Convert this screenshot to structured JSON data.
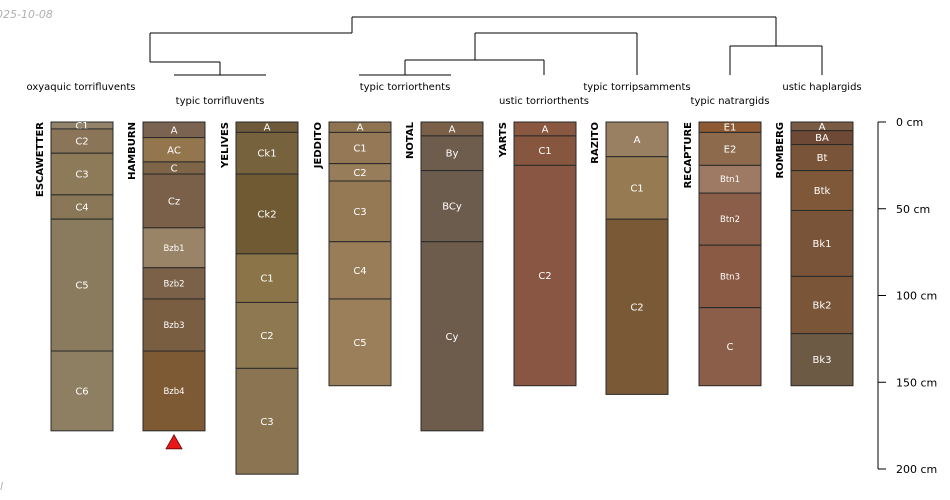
{
  "corner": {
    "date": "025-10-08",
    "mark": "l"
  },
  "colors": {
    "line": "#000000",
    "horizon_border": "#2a2a2a",
    "marker": "#e81818"
  },
  "depth_axis": {
    "unit": "cm",
    "ticks": [
      {
        "value": 0,
        "label": "0 cm"
      },
      {
        "value": 50,
        "label": "50 cm"
      },
      {
        "value": 100,
        "label": "100 cm"
      },
      {
        "value": 150,
        "label": "150 cm"
      },
      {
        "value": 200,
        "label": "200 cm"
      }
    ]
  },
  "groups": [
    {
      "label": "oxyaquic torrifluvents"
    },
    {
      "label": "typic torrifluvents"
    },
    {
      "label": "typic torriorthents"
    },
    {
      "label": "ustic torriorthents"
    },
    {
      "label": "typic torripsamments"
    },
    {
      "label": "typic natrargids"
    },
    {
      "label": "ustic haplargids"
    }
  ],
  "profiles": [
    {
      "name": "ESCAWETTER",
      "horizons": [
        {
          "name": "C1",
          "top": 0,
          "bottom": 4,
          "color": "#93836a"
        },
        {
          "name": "C2",
          "top": 4,
          "bottom": 18,
          "color": "#8a7558"
        },
        {
          "name": "C3",
          "top": 18,
          "bottom": 42,
          "color": "#8d7a58"
        },
        {
          "name": "C4",
          "top": 42,
          "bottom": 56,
          "color": "#8a7757"
        },
        {
          "name": "C5",
          "top": 56,
          "bottom": 132,
          "color": "#8b7b5e"
        },
        {
          "name": "C6",
          "top": 132,
          "bottom": 178,
          "color": "#8e7e62"
        }
      ]
    },
    {
      "name": "HAMBURN",
      "marker": true,
      "horizons": [
        {
          "name": "A",
          "top": 0,
          "bottom": 9,
          "color": "#7a6350"
        },
        {
          "name": "AC",
          "top": 9,
          "bottom": 23,
          "color": "#94764e"
        },
        {
          "name": "C",
          "top": 23,
          "bottom": 30,
          "color": "#7e6548"
        },
        {
          "name": "Cz",
          "top": 30,
          "bottom": 61,
          "color": "#7a6048"
        },
        {
          "name": "Bzb1",
          "top": 61,
          "bottom": 84,
          "color": "#9a8468"
        },
        {
          "name": "Bzb2",
          "top": 84,
          "bottom": 102,
          "color": "#7a6148"
        },
        {
          "name": "Bzb3",
          "top": 102,
          "bottom": 132,
          "color": "#7a5e42"
        },
        {
          "name": "Bzb4",
          "top": 132,
          "bottom": 178,
          "color": "#7e5a34"
        }
      ]
    },
    {
      "name": "YELIVES",
      "horizons": [
        {
          "name": "A",
          "top": 0,
          "bottom": 6,
          "color": "#6e5a3a"
        },
        {
          "name": "Ck1",
          "top": 6,
          "bottom": 30,
          "color": "#76633e"
        },
        {
          "name": "Ck2",
          "top": 30,
          "bottom": 76,
          "color": "#6f5a34"
        },
        {
          "name": "C1",
          "top": 76,
          "bottom": 104,
          "color": "#8b7548"
        },
        {
          "name": "C2",
          "top": 104,
          "bottom": 142,
          "color": "#8d7852"
        },
        {
          "name": "C3",
          "top": 142,
          "bottom": 203,
          "color": "#8a7451"
        }
      ]
    },
    {
      "name": "JEDDITO",
      "horizons": [
        {
          "name": "A",
          "top": 0,
          "bottom": 6,
          "color": "#8f7452"
        },
        {
          "name": "C1",
          "top": 6,
          "bottom": 24,
          "color": "#957956"
        },
        {
          "name": "C2",
          "top": 24,
          "bottom": 34,
          "color": "#987d5a"
        },
        {
          "name": "C3",
          "top": 34,
          "bottom": 69,
          "color": "#957955"
        },
        {
          "name": "C4",
          "top": 69,
          "bottom": 102,
          "color": "#987d58"
        },
        {
          "name": "C5",
          "top": 102,
          "bottom": 152,
          "color": "#9a7f5a"
        }
      ]
    },
    {
      "name": "NOTAL",
      "horizons": [
        {
          "name": "A",
          "top": 0,
          "bottom": 8,
          "color": "#7a6048"
        },
        {
          "name": "By",
          "top": 8,
          "bottom": 28,
          "color": "#6e5c4c"
        },
        {
          "name": "BCy",
          "top": 28,
          "bottom": 69,
          "color": "#6c5c4d"
        },
        {
          "name": "Cy",
          "top": 69,
          "bottom": 178,
          "color": "#6d5b4b"
        }
      ]
    },
    {
      "name": "YARTS",
      "horizons": [
        {
          "name": "A",
          "top": 0,
          "bottom": 8,
          "color": "#8a5840"
        },
        {
          "name": "C1",
          "top": 8,
          "bottom": 25,
          "color": "#86563f"
        },
        {
          "name": "C2",
          "top": 25,
          "bottom": 152,
          "color": "#885642"
        }
      ]
    },
    {
      "name": "RAZITO",
      "horizons": [
        {
          "name": "A",
          "top": 0,
          "bottom": 20,
          "color": "#9a8062"
        },
        {
          "name": "C1",
          "top": 20,
          "bottom": 56,
          "color": "#957a52"
        },
        {
          "name": "C2",
          "top": 56,
          "bottom": 157,
          "color": "#7a5a36"
        }
      ]
    },
    {
      "name": "RECAPTURE",
      "horizons": [
        {
          "name": "E1",
          "top": 0,
          "bottom": 6,
          "color": "#8e5a34"
        },
        {
          "name": "E2",
          "top": 6,
          "bottom": 25,
          "color": "#8d6a4c"
        },
        {
          "name": "Btn1",
          "top": 25,
          "bottom": 41,
          "color": "#9e7a65"
        },
        {
          "name": "Btn2",
          "top": 41,
          "bottom": 71,
          "color": "#8a5e48"
        },
        {
          "name": "Btn3",
          "top": 71,
          "bottom": 107,
          "color": "#8a5a45"
        },
        {
          "name": "C",
          "top": 107,
          "bottom": 152,
          "color": "#8a5e48"
        }
      ]
    },
    {
      "name": "ROMBERG",
      "horizons": [
        {
          "name": "A",
          "top": 0,
          "bottom": 5,
          "color": "#7a5c44"
        },
        {
          "name": "BA",
          "top": 5,
          "bottom": 13,
          "color": "#6e4a36"
        },
        {
          "name": "Bt",
          "top": 13,
          "bottom": 28,
          "color": "#7a5438"
        },
        {
          "name": "Btk",
          "top": 28,
          "bottom": 51,
          "color": "#7e5838"
        },
        {
          "name": "Bk1",
          "top": 51,
          "bottom": 89,
          "color": "#7a5438"
        },
        {
          "name": "Bk2",
          "top": 89,
          "bottom": 122,
          "color": "#7a5538"
        },
        {
          "name": "Bk3",
          "top": 122,
          "bottom": 152,
          "color": "#6d5a44"
        }
      ]
    }
  ]
}
